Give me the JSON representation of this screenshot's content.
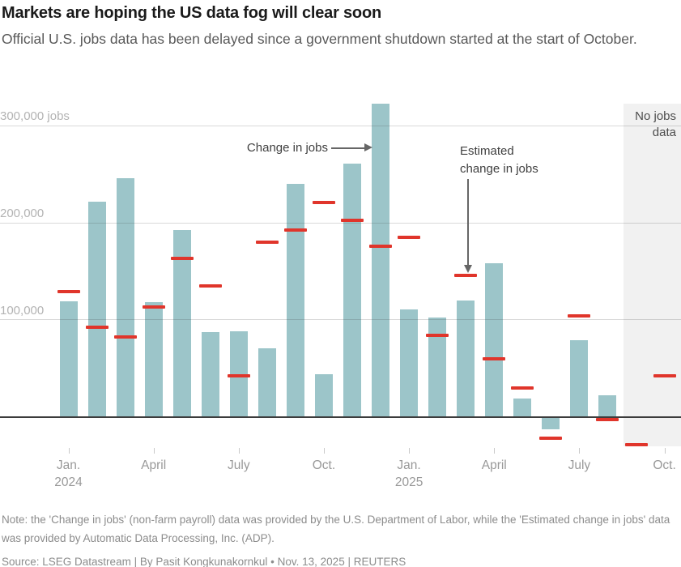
{
  "chart_data": {
    "type": "bar",
    "title": "Markets are hoping the US data fog will clear soon",
    "subtitle": "Official U.S. jobs data has been delayed since a government shutdown started at the start of October.",
    "unit_label": "jobs",
    "categories": [
      "Jan. 2024",
      "Feb. 2024",
      "Mar. 2024",
      "Apr. 2024",
      "May 2024",
      "Jun. 2024",
      "Jul. 2024",
      "Aug. 2024",
      "Sep. 2024",
      "Oct. 2024",
      "Nov. 2024",
      "Dec. 2024",
      "Jan. 2025",
      "Feb. 2025",
      "Mar. 2025",
      "Apr. 2025",
      "May 2025",
      "Jun. 2025",
      "Jul. 2025",
      "Aug. 2025",
      "Sep. 2025",
      "Oct. 2025"
    ],
    "series": [
      {
        "name": "Change in jobs",
        "style": "bar",
        "color": "#9cc5c9",
        "values": [
          119000,
          222000,
          246000,
          118000,
          193000,
          87000,
          88000,
          71000,
          240000,
          44000,
          261000,
          323000,
          111000,
          102000,
          120000,
          158000,
          19000,
          -13000,
          79000,
          22000,
          null,
          null
        ]
      },
      {
        "name": "Estimated change in jobs",
        "style": "dash",
        "color": "#e0352b",
        "values": [
          129000,
          92000,
          82000,
          113000,
          163000,
          135000,
          42000,
          180000,
          193000,
          221000,
          203000,
          176000,
          185000,
          84000,
          146000,
          60000,
          30000,
          -22000,
          104000,
          -3000,
          -29000,
          42000
        ]
      }
    ],
    "y_axis": {
      "range": [
        -50000,
        350000
      ],
      "gridlines": true,
      "ticks": [
        {
          "v": 100000,
          "label": "100,000"
        },
        {
          "v": 200000,
          "label": "200,000"
        },
        {
          "v": 300000,
          "label": "300,000 jobs"
        }
      ]
    },
    "x_axis": {
      "ticks": [
        {
          "i": 0,
          "label": "Jan.",
          "year": "2024"
        },
        {
          "i": 3,
          "label": "April"
        },
        {
          "i": 6,
          "label": "July"
        },
        {
          "i": 9,
          "label": "Oct."
        },
        {
          "i": 12,
          "label": "Jan.",
          "year": "2025"
        },
        {
          "i": 15,
          "label": "April"
        },
        {
          "i": 18,
          "label": "July"
        },
        {
          "i": 21,
          "label": "Oct."
        }
      ]
    },
    "annotations": {
      "bar_series_label": "Change in jobs",
      "dash_series_label": [
        "Estimated",
        "change in jobs"
      ],
      "no_data": {
        "label_lines": [
          "No jobs",
          "data"
        ],
        "start_index": 20,
        "end_index": 21
      }
    },
    "legend_position": "annotated-arrows"
  },
  "footer": {
    "note": "Note: the 'Change in jobs' (non-farm payroll) data was provided by the U.S. Department of Labor, while the 'Estimated change in jobs' data was provided by Automatic Data Processing, Inc. (ADP).",
    "source": "Source: LSEG Datastream | By Pasit Kongkunakornkul • Nov. 13, 2025 | REUTERS"
  }
}
